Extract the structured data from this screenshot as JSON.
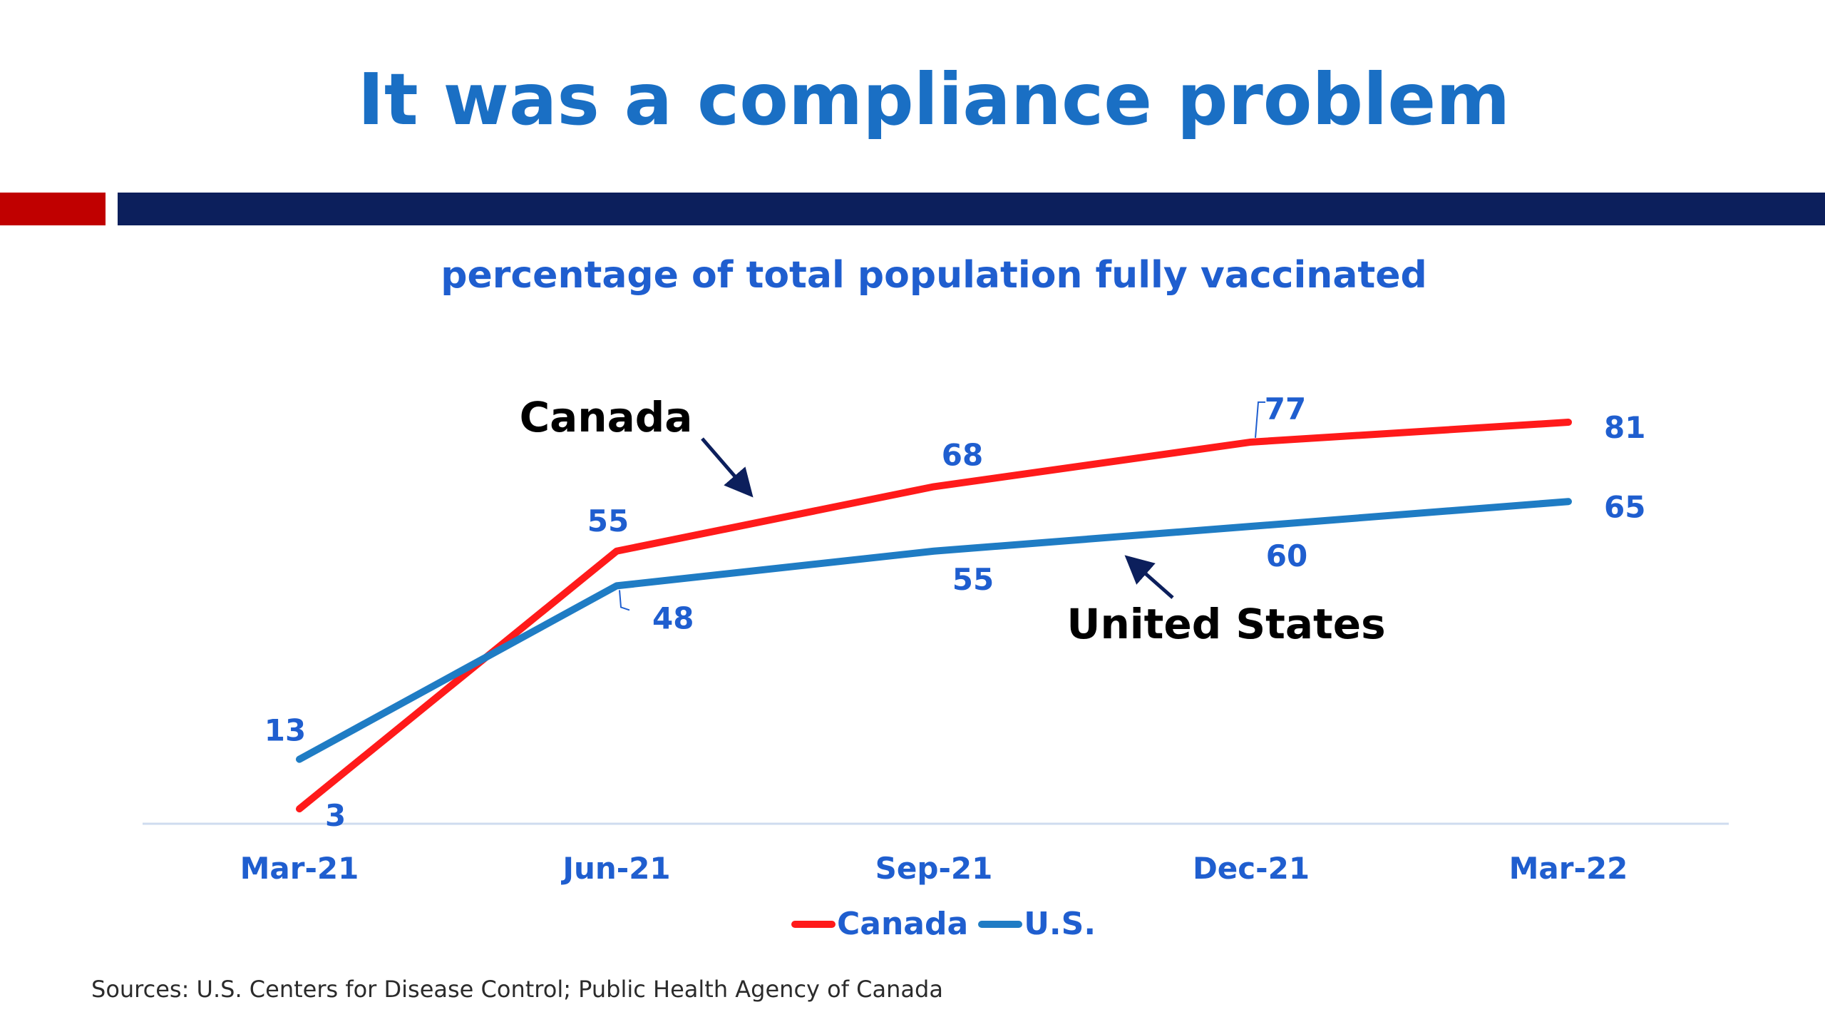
{
  "slide": {
    "title": "It was a compliance problem",
    "source": "Sources: U.S. Centers for Disease Control; Public Health Agency of Canada"
  },
  "colors": {
    "title_blue": "#1a6fc4",
    "accent_red": "#c00000",
    "accent_navy": "#0c1f5c",
    "canada_line": "#ff1a1a",
    "us_line": "#1f7cc4",
    "label_blue": "#1f5ecf",
    "axis_line": "#cfdcef"
  },
  "chart_data": {
    "type": "line",
    "title": "percentage of total population fully vaccinated",
    "xlabel": "",
    "ylabel": "",
    "categories": [
      "Mar-21",
      "Jun-21",
      "Sep-21",
      "Dec-21",
      "Mar-22"
    ],
    "ylim": [
      0,
      100
    ],
    "grid": false,
    "legend_position": "bottom",
    "series": [
      {
        "name": "Canada",
        "legend": "Canada",
        "annotation": "Canada",
        "values": [
          3,
          55,
          68,
          77,
          81
        ],
        "color": "#ff1a1a"
      },
      {
        "name": "U.S.",
        "legend": "U.S.",
        "annotation": "United States",
        "values": [
          13,
          48,
          55,
          60,
          65
        ],
        "color": "#1f7cc4"
      }
    ]
  }
}
